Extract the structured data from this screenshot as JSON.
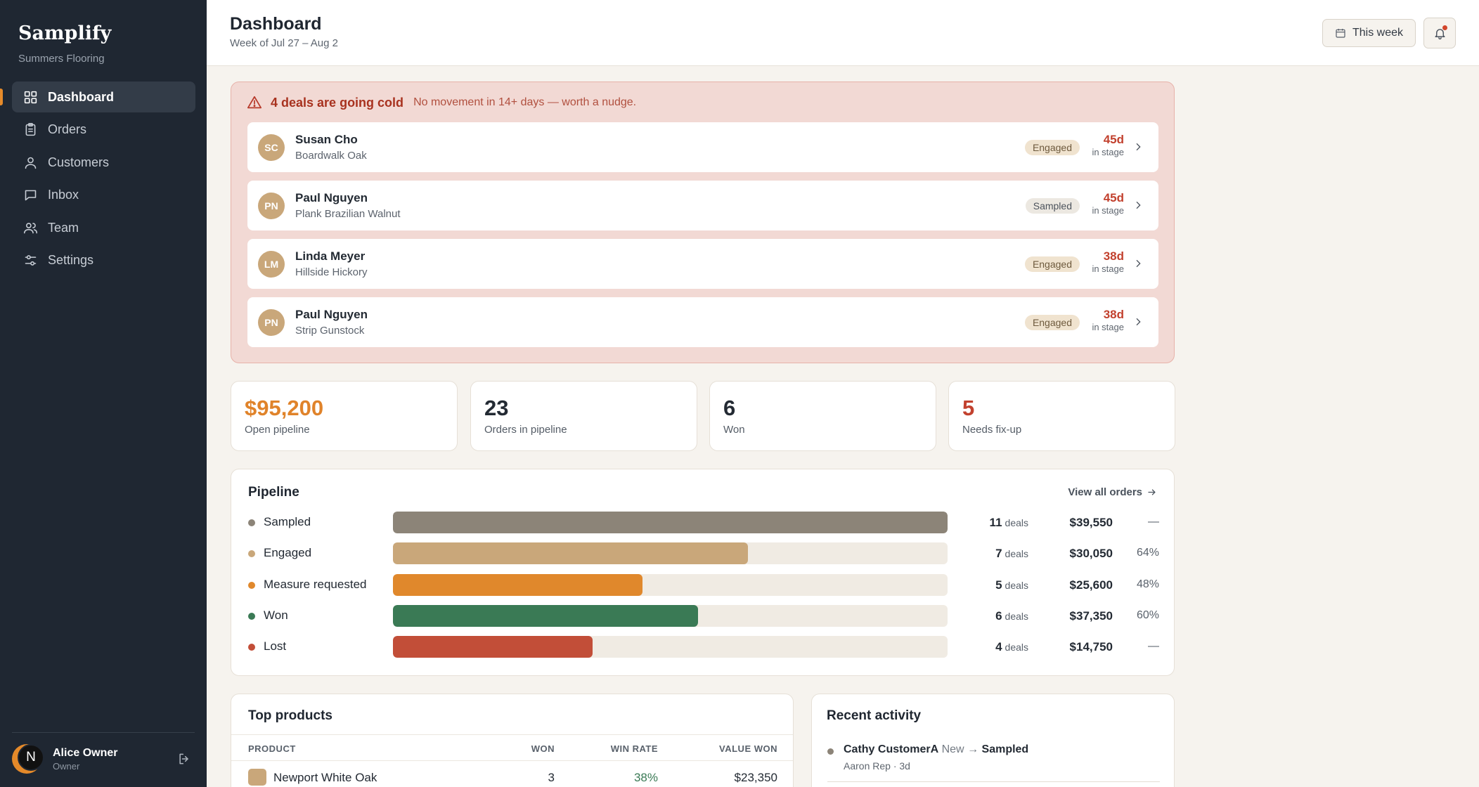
{
  "sidebar": {
    "brand": "Samplify",
    "org": "Summers Flooring",
    "nav": [
      {
        "label": "Dashboard",
        "icon": "grid-icon"
      },
      {
        "label": "Orders",
        "icon": "clipboard-icon"
      },
      {
        "label": "Customers",
        "icon": "user-icon"
      },
      {
        "label": "Inbox",
        "icon": "message-icon"
      },
      {
        "label": "Team",
        "icon": "users-icon"
      },
      {
        "label": "Settings",
        "icon": "sliders-icon"
      }
    ],
    "user": {
      "initial": "N",
      "name": "Alice Owner",
      "role": "Owner"
    }
  },
  "header": {
    "title": "Dashboard",
    "subtitle": "Week of Jul 27 – Aug 2",
    "range_label": "This week"
  },
  "alert": {
    "title": "4 deals are going cold",
    "description": "No movement in 14+ days — worth a nudge.",
    "in_stage_label": "in stage",
    "deals": [
      {
        "initials": "SC",
        "name": "Susan Cho",
        "product": "Boardwalk Oak",
        "stage": "Engaged",
        "days": "45d"
      },
      {
        "initials": "PN",
        "name": "Paul Nguyen",
        "product": "Plank Brazilian Walnut",
        "stage": "Sampled",
        "days": "45d"
      },
      {
        "initials": "LM",
        "name": "Linda Meyer",
        "product": "Hillside Hickory",
        "stage": "Engaged",
        "days": "38d"
      },
      {
        "initials": "PN",
        "name": "Paul Nguyen",
        "product": "Strip Gunstock",
        "stage": "Engaged",
        "days": "38d"
      }
    ]
  },
  "stats": [
    {
      "value": "$95,200",
      "label": "Open pipeline",
      "color": "#e0832a"
    },
    {
      "value": "23",
      "label": "Orders in pipeline",
      "color": "#232a33"
    },
    {
      "value": "6",
      "label": "Won",
      "color": "#232a33"
    },
    {
      "value": "5",
      "label": "Needs fix-up",
      "color": "#c2412e"
    }
  ],
  "pipeline": {
    "title": "Pipeline",
    "link": "View all orders",
    "deals_word": "deals",
    "rows": [
      {
        "label": "Sampled",
        "count": "11",
        "value": "$39,550",
        "rate": "—",
        "fill": 1.0,
        "color": "#8c8478"
      },
      {
        "label": "Engaged",
        "count": "7",
        "value": "$30,050",
        "rate": "64%",
        "fill": 0.64,
        "color": "#c9a77a"
      },
      {
        "label": "Measure requested",
        "count": "5",
        "value": "$25,600",
        "rate": "48%",
        "fill": 0.45,
        "color": "#e0882c"
      },
      {
        "label": "Won",
        "count": "6",
        "value": "$37,350",
        "rate": "60%",
        "fill": 0.55,
        "color": "#3a7a55"
      },
      {
        "label": "Lost",
        "count": "4",
        "value": "$14,750",
        "rate": "—",
        "fill": 0.36,
        "color": "#c24e38"
      }
    ]
  },
  "products": {
    "title": "Top products",
    "columns": [
      "PRODUCT",
      "WON",
      "WIN RATE",
      "VALUE WON"
    ],
    "rows": [
      {
        "name": "Newport White Oak",
        "won": "3",
        "win_rate": "38%",
        "value": "$23,350"
      }
    ]
  },
  "activity": {
    "title": "Recent activity",
    "items": [
      {
        "customer": "Cathy CustomerA",
        "from": "New",
        "arrow": "→",
        "to": "Sampled",
        "meta": "Aaron Rep · 3d"
      }
    ]
  }
}
